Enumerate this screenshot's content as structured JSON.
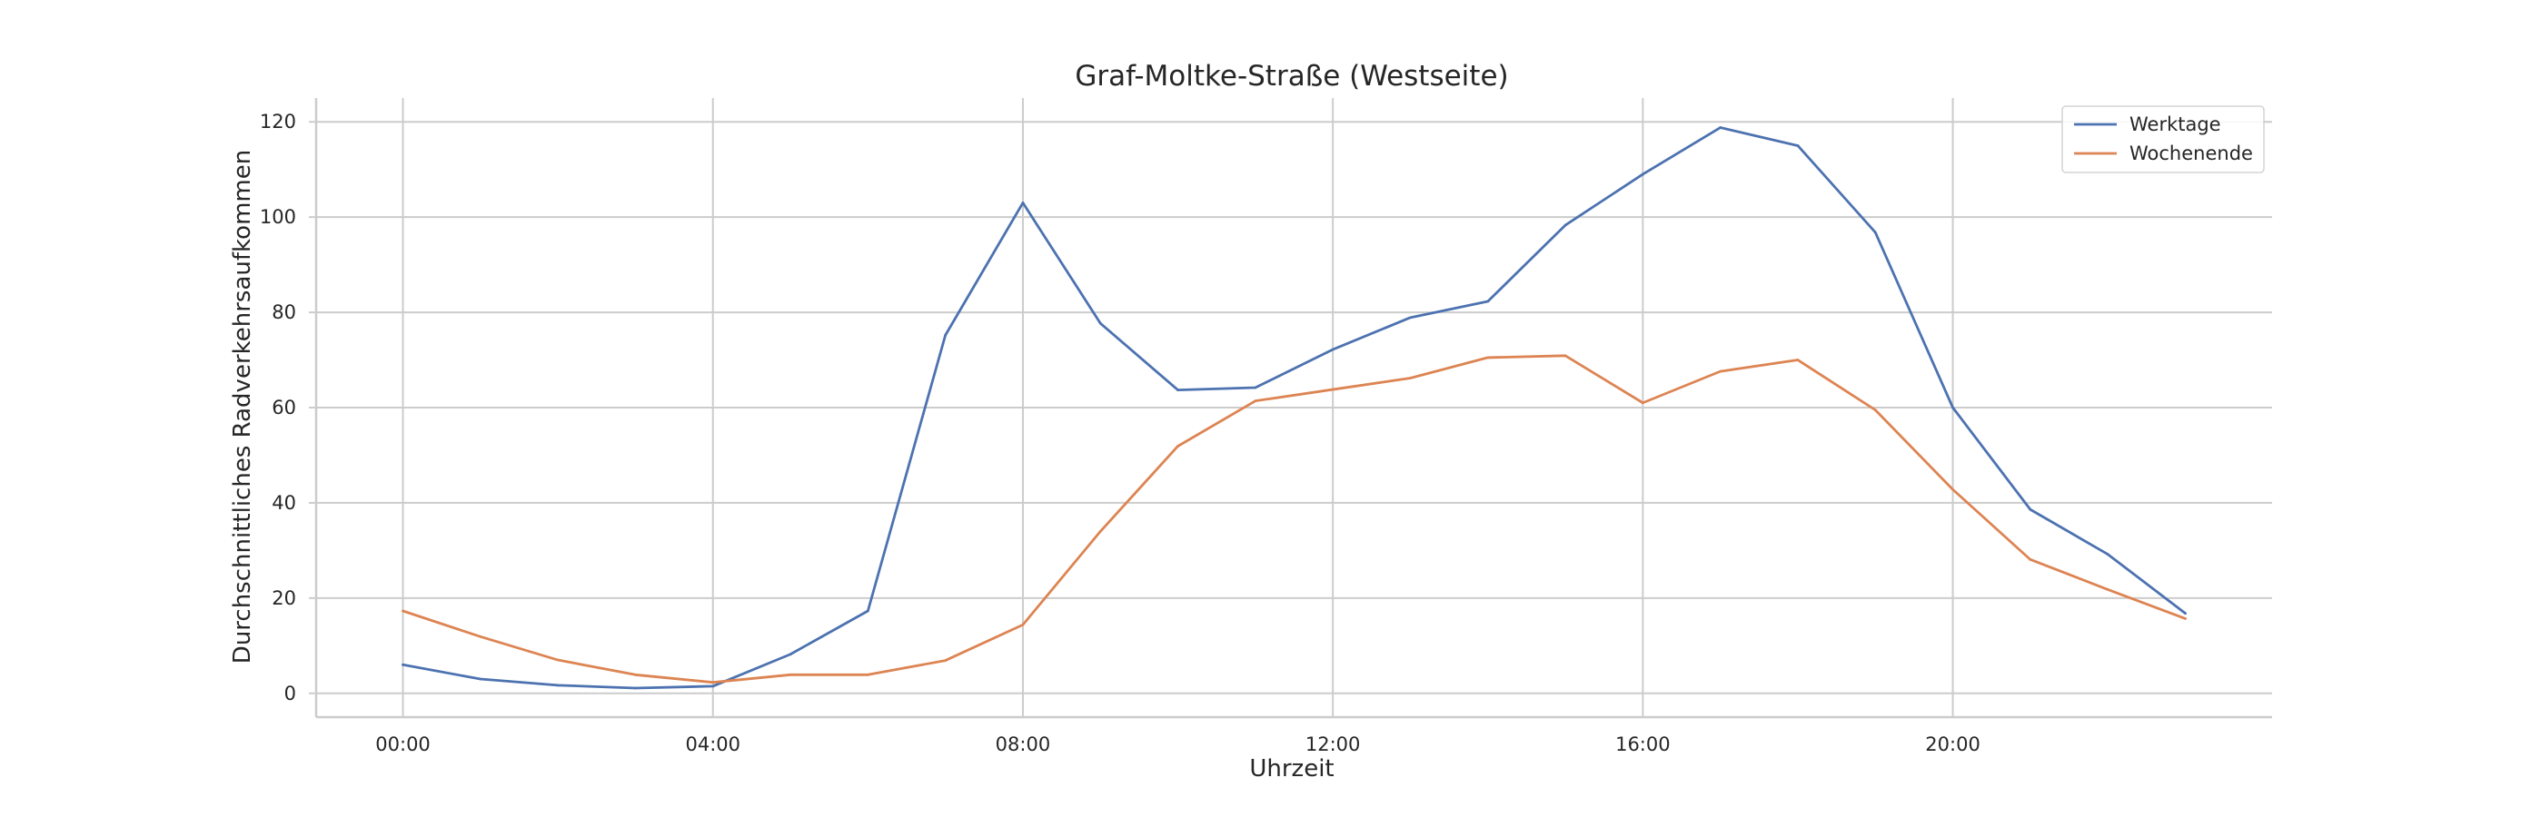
{
  "chart_data": {
    "type": "line",
    "title": "Graf-Moltke-Straße (Westseite)",
    "xlabel": "Uhrzeit",
    "ylabel": "Durchschnittliches Radverkehrsaufkommen",
    "x": [
      0,
      1,
      2,
      3,
      4,
      5,
      6,
      7,
      8,
      9,
      10,
      11,
      12,
      13,
      14,
      15,
      16,
      17,
      18,
      19,
      20,
      21,
      22,
      23
    ],
    "xticks": [
      {
        "value": 0,
        "label": "00:00"
      },
      {
        "value": 4,
        "label": "04:00"
      },
      {
        "value": 8,
        "label": "08:00"
      },
      {
        "value": 12,
        "label": "12:00"
      },
      {
        "value": 16,
        "label": "16:00"
      },
      {
        "value": 20,
        "label": "20:00"
      }
    ],
    "yticks": [
      0,
      20,
      40,
      60,
      80,
      100,
      120
    ],
    "xlim": [
      -1.12,
      24.12
    ],
    "ylim": [
      -5,
      125
    ],
    "grid": true,
    "legend_position": "top-right",
    "series": [
      {
        "name": "Werktage",
        "color": "#4c72b0",
        "values": [
          6.0,
          3.0,
          1.7,
          1.1,
          1.5,
          8.2,
          17.3,
          75.2,
          103.0,
          77.7,
          63.7,
          64.2,
          72.2,
          78.9,
          82.3,
          98.3,
          109.0,
          118.8,
          115.0,
          96.8,
          60.0,
          38.6,
          29.2,
          16.8
        ]
      },
      {
        "name": "Wochenende",
        "color": "#dd8452",
        "values": [
          17.3,
          11.9,
          7.0,
          3.9,
          2.3,
          3.9,
          3.9,
          6.9,
          14.4,
          34.0,
          51.9,
          61.4,
          63.8,
          66.2,
          70.5,
          70.9,
          61.0,
          67.6,
          70.0,
          59.5,
          42.8,
          28.1,
          21.8,
          15.7
        ]
      }
    ]
  }
}
